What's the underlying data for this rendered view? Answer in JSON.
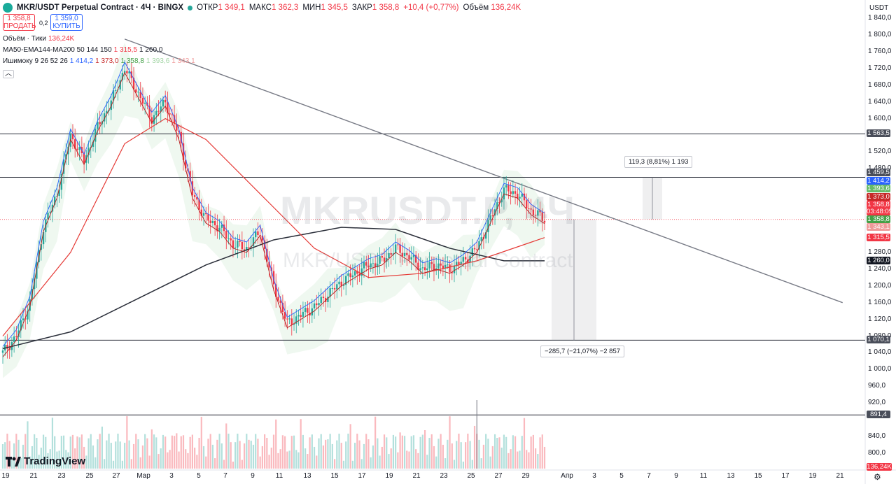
{
  "header": {
    "symbol": "MKR/USDT Perpetual Contract · 4Ч · BINGX",
    "open_label": "ОТКР",
    "open": "1 349,1",
    "high_label": "МАКС",
    "high": "1 362,3",
    "low_label": "МИН",
    "low": "1 345,5",
    "close_label": "ЗАКР",
    "close": "1 358,8",
    "change": "+10,4 (+0,77%)",
    "volume_label": "Объём",
    "volume": "136,24K"
  },
  "trade": {
    "sell_price": "1 358,8",
    "sell_label": "ПРОДАТЬ",
    "spread": "0,2",
    "buy_price": "1 359,0",
    "buy_label": "КУПИТЬ"
  },
  "indicators": {
    "volume_label": "Объём · Тики",
    "volume_value": "136,24K",
    "ma_label": "MA50-EMA144-MA200 50 144 150",
    "ma_v1": "1 315,5",
    "ma_v2": "1 260,0",
    "ichimoku_label": "Ишимоку 9 26 52 26",
    "ich_v1": "1 414,2",
    "ich_v2": "1 373,0",
    "ich_v3": "1 358,8",
    "ich_v4": "1 393,6",
    "ich_v5": "1 343,1"
  },
  "axis": {
    "currency": "USDT",
    "price_ticks": [
      "1 840,0",
      "1 800,0",
      "1 760,0",
      "1 720,0",
      "1 680,0",
      "1 640,0",
      "1 600,0",
      "1 520,0",
      "1 480,0",
      "1 280,0",
      "1 240,0",
      "1 200,0",
      "1 160,0",
      "1 120,0",
      "1 080,0",
      "1 040,0",
      "1 000,0",
      "960,0",
      "920,0",
      "840,0",
      "800,0"
    ],
    "date_ticks": [
      "19",
      "21",
      "23",
      "25",
      "27",
      "Мар",
      "3",
      "5",
      "7",
      "9",
      "11",
      "13",
      "15",
      "17",
      "19",
      "21",
      "23",
      "25",
      "27",
      "29",
      "Апр",
      "3",
      "5",
      "7",
      "9",
      "11",
      "13",
      "15",
      "17",
      "19",
      "21"
    ]
  },
  "badges": [
    {
      "label": "1 563,5",
      "color": "#4a4e5a"
    },
    {
      "label": "1 459,5",
      "color": "#4a4e5a"
    },
    {
      "label": "1 414,2",
      "color": "#2962ff"
    },
    {
      "label": "1 393,6",
      "color": "#66bb6a"
    },
    {
      "label": "1 373,0",
      "color": "#c62828"
    },
    {
      "label": "1 358,8",
      "color": "#f23645"
    },
    {
      "label": "03:48:09",
      "color": "#f23645"
    },
    {
      "label": "1 358,8",
      "color": "#43a047"
    },
    {
      "label": "1 343,1",
      "color": "#ef9a9a"
    },
    {
      "label": "1 315,5",
      "color": "#f23645"
    },
    {
      "label": "1 260,0",
      "color": "#131722"
    },
    {
      "label": "1 070,1",
      "color": "#4a4e5a"
    },
    {
      "label": "891,4",
      "color": "#4a4e5a"
    }
  ],
  "measurements": {
    "up": "119,3 (8,81%) 1 193",
    "down": "−285,7 (−21,07%) −2 857"
  },
  "watermark": {
    "big": "MKRUSDT.P, 4Ч",
    "small": "MKR/USDT Perpetual Contract"
  },
  "volume_badge": "136,24K",
  "logo_text": "TradingView",
  "colors": {
    "up": "#26a69a",
    "down": "#f23645",
    "ma_black": "#2a2e39",
    "ema_red": "#e53935",
    "tenkan": "#2962ff",
    "kijun": "#b71c1c",
    "chikou": "#66bb6a"
  },
  "chart_data": {
    "type": "candlestick",
    "symbol": "MKRUSDT.P",
    "timeframe": "4Ч",
    "ylim": [
      780,
      1860
    ],
    "horizontal_levels": [
      1563.5,
      1459.5,
      1070.1,
      891.4
    ],
    "trendline": [
      {
        "date": "27 Feb",
        "price": 1790
      },
      {
        "date": "21 Apr",
        "price": 1160
      }
    ],
    "last_price": 1358.8,
    "price_path": [
      {
        "date": "18 Feb",
        "price": 1040
      },
      {
        "date": "19 Feb",
        "price": 1080
      },
      {
        "date": "20 Feb",
        "price": 1160
      },
      {
        "date": "21 Feb",
        "price": 1340
      },
      {
        "date": "22 Feb",
        "price": 1420
      },
      {
        "date": "23 Feb",
        "price": 1560
      },
      {
        "date": "24 Feb",
        "price": 1500
      },
      {
        "date": "25 Feb",
        "price": 1580
      },
      {
        "date": "26 Feb",
        "price": 1640
      },
      {
        "date": "27 Feb",
        "price": 1720
      },
      {
        "date": "28 Feb",
        "price": 1660
      },
      {
        "date": "1 Mar",
        "price": 1600
      },
      {
        "date": "2 Mar",
        "price": 1640
      },
      {
        "date": "3 Mar",
        "price": 1560
      },
      {
        "date": "4 Mar",
        "price": 1420
      },
      {
        "date": "5 Mar",
        "price": 1360
      },
      {
        "date": "6 Mar",
        "price": 1340
      },
      {
        "date": "7 Mar",
        "price": 1300
      },
      {
        "date": "8 Mar",
        "price": 1290
      },
      {
        "date": "9 Mar",
        "price": 1330
      },
      {
        "date": "10 Mar",
        "price": 1200
      },
      {
        "date": "11 Mar",
        "price": 1110
      },
      {
        "date": "12 Mar",
        "price": 1130
      },
      {
        "date": "13 Mar",
        "price": 1150
      },
      {
        "date": "14 Mar",
        "price": 1180
      },
      {
        "date": "15 Mar",
        "price": 1210
      },
      {
        "date": "16 Mar",
        "price": 1230
      },
      {
        "date": "17 Mar",
        "price": 1250
      },
      {
        "date": "18 Mar",
        "price": 1260
      },
      {
        "date": "19 Mar",
        "price": 1290
      },
      {
        "date": "20 Mar",
        "price": 1270
      },
      {
        "date": "21 Mar",
        "price": 1240
      },
      {
        "date": "22 Mar",
        "price": 1250
      },
      {
        "date": "23 Mar",
        "price": 1240
      },
      {
        "date": "24 Mar",
        "price": 1260
      },
      {
        "date": "25 Mar",
        "price": 1290
      },
      {
        "date": "26 Mar",
        "price": 1360
      },
      {
        "date": "27 Mar",
        "price": 1430
      },
      {
        "date": "28 Mar",
        "price": 1420
      },
      {
        "date": "29 Mar",
        "price": 1380
      },
      {
        "date": "30 Mar",
        "price": 1358.8
      }
    ],
    "ma_200": [
      {
        "date": "18 Feb",
        "price": 1050
      },
      {
        "date": "23 Feb",
        "price": 1090
      },
      {
        "date": "28 Feb",
        "price": 1170
      },
      {
        "date": "5 Mar",
        "price": 1250
      },
      {
        "date": "10 Mar",
        "price": 1310
      },
      {
        "date": "15 Mar",
        "price": 1340
      },
      {
        "date": "19 Mar",
        "price": 1335
      },
      {
        "date": "23 Mar",
        "price": 1290
      },
      {
        "date": "27 Mar",
        "price": 1260
      },
      {
        "date": "30 Mar",
        "price": 1260
      }
    ],
    "ema_144": [
      {
        "date": "18 Feb",
        "price": 1080
      },
      {
        "date": "23 Feb",
        "price": 1280
      },
      {
        "date": "27 Feb",
        "price": 1540
      },
      {
        "date": "2 Mar",
        "price": 1600
      },
      {
        "date": "5 Mar",
        "price": 1550
      },
      {
        "date": "9 Mar",
        "price": 1420
      },
      {
        "date": "13 Mar",
        "price": 1290
      },
      {
        "date": "17 Mar",
        "price": 1220
      },
      {
        "date": "21 Mar",
        "price": 1230
      },
      {
        "date": "25 Mar",
        "price": 1260
      },
      {
        "date": "30 Mar",
        "price": 1315.5
      }
    ],
    "volume_peak_date": "25 Mar"
  }
}
